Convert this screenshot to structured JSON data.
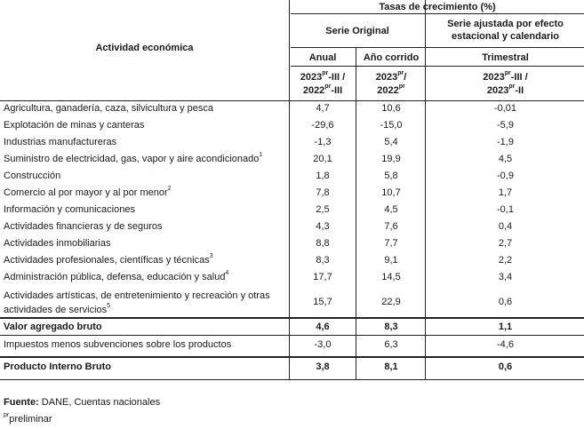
{
  "header": {
    "top_title": "Tasas de crecimiento (%)",
    "activity_col": "Actividad económica",
    "serie_original": "Serie Original",
    "serie_ajustada_line1": "Serie ajustada por efecto",
    "serie_ajustada_line2": "estacional y calendario",
    "anual": "Anual",
    "ano_corrido": "Año corrido",
    "trimestral": "Trimestral",
    "period_anual_a": "2023",
    "period_anual_sup_a": "pr",
    "period_anual_b": "-III /",
    "period_anual_c": "2022",
    "period_anual_sup_c": "pr",
    "period_anual_d": "-III",
    "period_ac_a": "2023",
    "period_ac_sup_a": "pr",
    "period_ac_b": "/",
    "period_ac_c": "2022",
    "period_ac_sup_c": "pr",
    "period_tri_a": "2023",
    "period_tri_sup_a": "pr",
    "period_tri_b": "-III /",
    "period_tri_c": "2023",
    "period_tri_sup_c": "pr",
    "period_tri_d": "-II"
  },
  "rows": [
    {
      "label": "Agricultura, ganadería, caza, silvicultura y pesca",
      "note": "",
      "anual": "4,7",
      "ano_corrido": "10,6",
      "trimestral": "-0,01"
    },
    {
      "label": "Explotación de minas y canteras",
      "note": "",
      "anual": "-29,6",
      "ano_corrido": "-15,0",
      "trimestral": "-5,9"
    },
    {
      "label": "Industrias manufactureras",
      "note": "",
      "anual": "-1,3",
      "ano_corrido": "5,4",
      "trimestral": "-1,9"
    },
    {
      "label": "Suministro de electricidad, gas, vapor y aire acondicionado",
      "note": "1",
      "anual": "20,1",
      "ano_corrido": "19,9",
      "trimestral": "4,5"
    },
    {
      "label": "Construcción",
      "note": "",
      "anual": "1,8",
      "ano_corrido": "5,8",
      "trimestral": "-0,9"
    },
    {
      "label": "Comercio al por mayor y al por menor",
      "note": "2",
      "anual": "7,8",
      "ano_corrido": "10,7",
      "trimestral": "1,7"
    },
    {
      "label": "Información y comunicaciones",
      "note": "",
      "anual": "2,5",
      "ano_corrido": "4,5",
      "trimestral": "-0,1"
    },
    {
      "label": "Actividades financieras y de seguros",
      "note": "",
      "anual": "4,3",
      "ano_corrido": "7,6",
      "trimestral": "0,4"
    },
    {
      "label": "Actividades inmobiliarias",
      "note": "",
      "anual": "8,8",
      "ano_corrido": "7,7",
      "trimestral": "2,7"
    },
    {
      "label": "Actividades profesionales, científicas y técnicas",
      "note": "3",
      "anual": "8,3",
      "ano_corrido": "9,1",
      "trimestral": "2,2"
    },
    {
      "label": "Administración pública, defensa, educación y salud",
      "note": "4",
      "anual": "17,7",
      "ano_corrido": "14,5",
      "trimestral": "3,4"
    }
  ],
  "row_artisticas": {
    "label_line1": "Actividades artísticas, de entretenimiento y recreación y otras",
    "label_line2": "actividades de servicios",
    "note": "5",
    "anual": "15,7",
    "ano_corrido": "22,9",
    "trimestral": "0,6"
  },
  "row_vab": {
    "label": "Valor agregado bruto",
    "anual": "4,6",
    "ano_corrido": "8,3",
    "trimestral": "1,1"
  },
  "row_impuestos": {
    "label": "Impuestos menos subvenciones sobre los productos",
    "anual": "-3,0",
    "ano_corrido": "6,3",
    "trimestral": "-4,6"
  },
  "row_pib": {
    "label": "Producto Interno Bruto",
    "anual": "3,8",
    "ano_corrido": "8,1",
    "trimestral": "0,6"
  },
  "footer": {
    "fuente_label": "Fuente:",
    "fuente_text": " DANE, Cuentas nacionales",
    "pr_sup": "pr",
    "pr_text": "preliminar"
  }
}
